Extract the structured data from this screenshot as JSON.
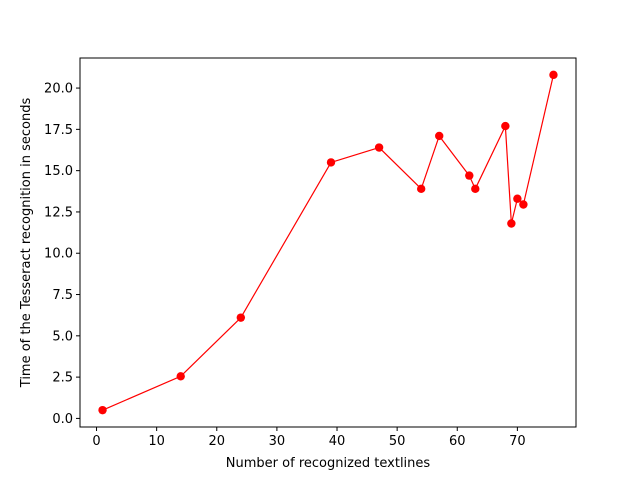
{
  "chart_data": {
    "type": "line",
    "title": "",
    "xlabel": "Number of recognized textlines",
    "ylabel": "Time of the Tesseract recognition in seconds",
    "xlim": [
      -2.75,
      79.75
    ],
    "ylim": [
      -0.52,
      21.82
    ],
    "xticks": [
      0,
      10,
      20,
      30,
      40,
      50,
      60,
      70
    ],
    "xtick_labels": [
      "0",
      "10",
      "20",
      "30",
      "40",
      "50",
      "60",
      "70"
    ],
    "yticks": [
      0.0,
      2.5,
      5.0,
      7.5,
      10.0,
      12.5,
      15.0,
      17.5,
      20.0
    ],
    "ytick_labels": [
      "0.0",
      "2.5",
      "5.0",
      "7.5",
      "10.0",
      "12.5",
      "15.0",
      "17.5",
      "20.0"
    ],
    "grid": false,
    "legend": "none",
    "series": [
      {
        "color": "#ff0000",
        "marker": "circle",
        "x": [
          1,
          14,
          24,
          39,
          47,
          54,
          57,
          62,
          63,
          68,
          69,
          70,
          71,
          76
        ],
        "y": [
          0.5,
          2.55,
          6.1,
          15.5,
          16.4,
          13.9,
          17.1,
          14.7,
          13.9,
          17.7,
          11.8,
          13.3,
          12.95,
          20.8
        ]
      }
    ]
  }
}
